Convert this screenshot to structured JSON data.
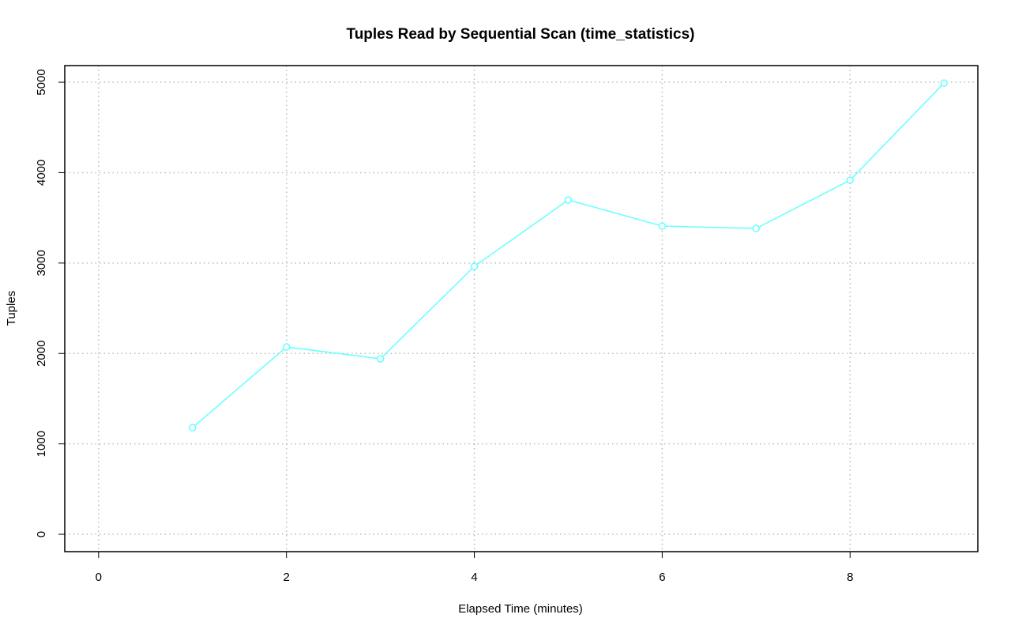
{
  "chart_data": {
    "type": "line",
    "title": "Tuples Read by Sequential Scan (time_statistics)",
    "x_label": "Elapsed Time (minutes)",
    "y_label": "Tuples",
    "x": [
      1,
      2,
      3,
      4,
      5,
      6,
      7,
      8,
      9
    ],
    "series": [
      {
        "color": "#66ffff",
        "values": [
          1180,
          2072,
          1941,
          2963,
          3698,
          3409,
          3383,
          3916,
          4991
        ]
      }
    ],
    "xlim": [
      -0.36,
      9.36
    ],
    "ylim": [
      -192,
      5184
    ],
    "xticks": [
      0,
      2,
      4,
      6,
      8
    ],
    "yticks": [
      0,
      1000,
      2000,
      3000,
      4000,
      5000
    ],
    "grid": true
  }
}
